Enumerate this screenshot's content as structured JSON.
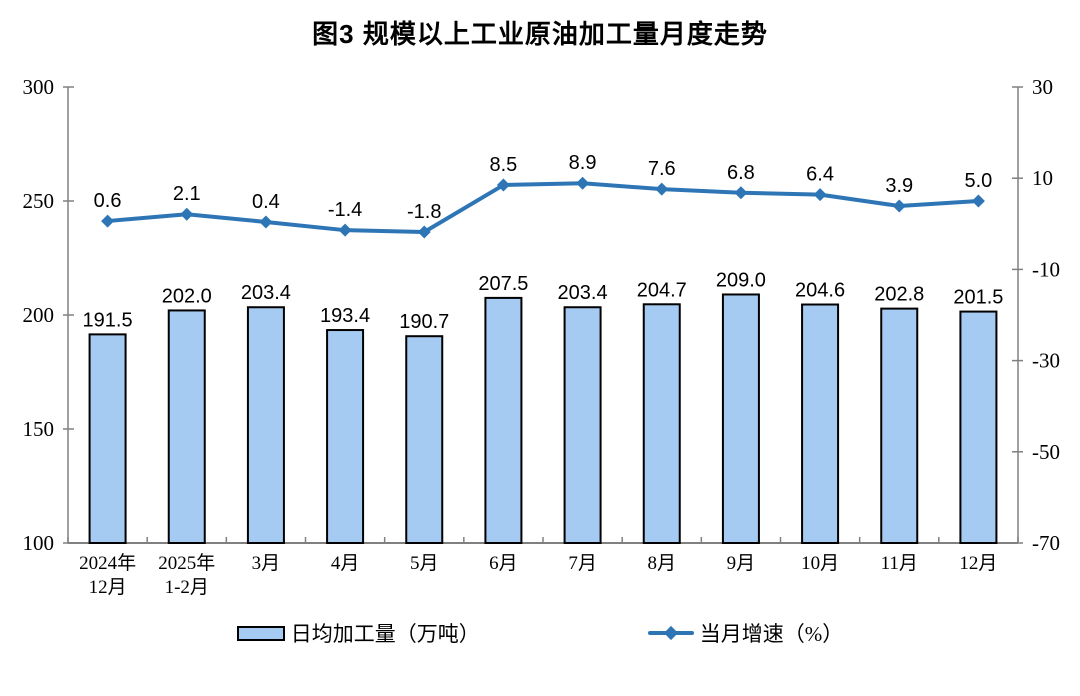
{
  "title": "图3 规模以上工业原油加工量月度走势",
  "chart_data": {
    "type": "bar+line combo",
    "title": "图3 规模以上工业原油加工量月度走势",
    "categories": [
      "2024年\n12月",
      "2025年\n1-2月",
      "3月",
      "4月",
      "5月",
      "6月",
      "7月",
      "8月",
      "9月",
      "10月",
      "11月",
      "12月"
    ],
    "series": [
      {
        "name": "日均加工量（万吨）",
        "type": "bar",
        "axis": "left",
        "values": [
          191.5,
          202.0,
          203.4,
          193.4,
          190.7,
          207.5,
          203.4,
          204.7,
          209.0,
          204.6,
          202.8,
          201.5
        ]
      },
      {
        "name": "当月增速（%）",
        "type": "line",
        "axis": "right",
        "values": [
          0.6,
          2.1,
          0.4,
          -1.4,
          -1.8,
          8.5,
          8.9,
          7.6,
          6.8,
          6.4,
          3.9,
          5.0
        ]
      }
    ],
    "left_axis": {
      "min": 100,
      "max": 300,
      "ticks": [
        300,
        250,
        200,
        150,
        100
      ]
    },
    "right_axis": {
      "min": -70,
      "max": 30,
      "ticks": [
        30,
        10,
        -10,
        -30,
        -50,
        -70
      ]
    },
    "grid": false,
    "legend_position": "bottom",
    "data_labels": true,
    "colors": {
      "bar_fill": "#A6CBF2",
      "bar_border": "#000000",
      "line": "#2E75B6",
      "axis": "#808080",
      "label": "#000000"
    }
  }
}
